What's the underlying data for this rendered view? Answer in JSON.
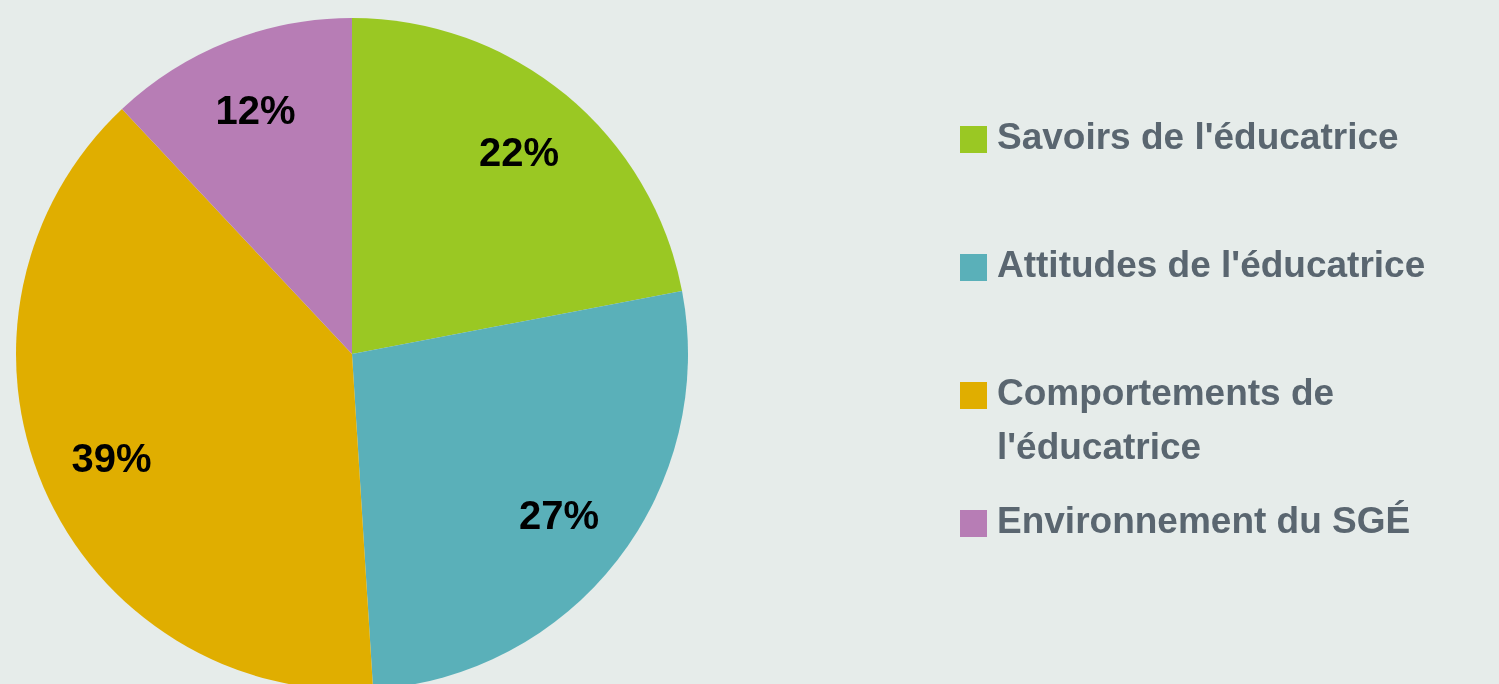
{
  "chart_data": {
    "type": "pie",
    "categories": [
      "Savoirs de l'éducatrice",
      "Attitudes de l'éducatrice",
      "Comportements de l'éducatrice",
      "Environnement du SGÉ"
    ],
    "values": [
      22,
      27,
      39,
      12
    ],
    "colors": [
      "#9ac823",
      "#5ab0b9",
      "#e0ae00",
      "#b77db5"
    ],
    "value_labels": [
      "22%",
      "27%",
      "39%",
      "12%"
    ],
    "legend": "right"
  }
}
